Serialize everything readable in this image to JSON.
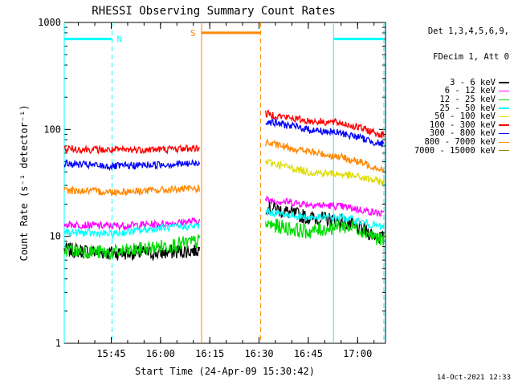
{
  "chart_data": {
    "type": "line",
    "title": "RHESSI Observing Summary Count Rates",
    "xlabel": "Start Time (24-Apr-09 15:30:42)",
    "ylabel": "Count Rate (s⁻¹ detector⁻¹)",
    "y_scale": "log",
    "ylim": [
      1,
      1000
    ],
    "xlim": [
      "15:30:42",
      "17:08:30"
    ],
    "y_ticks": [
      "1",
      "10",
      "100",
      "1000"
    ],
    "x_ticks": [
      "15:45",
      "16:00",
      "16:15",
      "16:30",
      "16:45",
      "17:00"
    ],
    "legend_header": [
      "Det 1,3,4,5,6,9,",
      "FDecim 1, Att 0"
    ],
    "gaps": [
      [
        "16:12:30",
        "16:32:00"
      ]
    ],
    "series": [
      {
        "name": "3 - 6 keV",
        "color": "#000000",
        "x": [
          "15:30:42",
          "15:45",
          "16:00",
          "16:12",
          "16:32",
          "16:45",
          "16:55",
          "17:00",
          "17:08"
        ],
        "values": [
          7.5,
          7.0,
          7.0,
          7.5,
          19,
          15,
          14,
          12,
          9.5
        ]
      },
      {
        "name": "6 - 12 keV",
        "color": "#ff00ff",
        "x": [
          "15:30:42",
          "15:45",
          "16:00",
          "16:12",
          "16:32",
          "16:45",
          "16:55",
          "17:00",
          "17:08"
        ],
        "values": [
          13,
          12.5,
          13,
          14,
          22,
          20,
          19,
          18,
          16
        ]
      },
      {
        "name": "12 - 25 keV",
        "color": "#00dd00",
        "x": [
          "15:30:42",
          "15:45",
          "16:00",
          "16:12",
          "16:32",
          "16:45",
          "16:55",
          "17:00",
          "17:08"
        ],
        "values": [
          7.5,
          7.0,
          8.0,
          9.0,
          13,
          11,
          12.5,
          12,
          9.0
        ]
      },
      {
        "name": "25 - 50 keV",
        "color": "#00ffff",
        "x": [
          "15:30:42",
          "15:45",
          "16:00",
          "16:12",
          "16:32",
          "16:45",
          "16:55",
          "17:00",
          "17:08"
        ],
        "values": [
          11,
          10.5,
          12,
          12.5,
          17,
          15,
          15,
          14,
          12
        ]
      },
      {
        "name": "50 - 100 keV",
        "color": "#dddd00",
        "x": [
          "16:32",
          "16:45",
          "16:55",
          "17:00",
          "17:08"
        ],
        "values": [
          50,
          40,
          38,
          36,
          32
        ]
      },
      {
        "name": "100 - 300 keV",
        "color": "#ff0000",
        "x": [
          "15:30:42",
          "15:45",
          "16:00",
          "16:12",
          "16:32",
          "16:45",
          "16:55",
          "17:00",
          "17:08"
        ],
        "values": [
          66,
          64,
          65,
          67,
          140,
          120,
          115,
          105,
          88
        ]
      },
      {
        "name": "300 - 800 keV",
        "color": "#0000ff",
        "x": [
          "15:30:42",
          "15:45",
          "16:00",
          "16:12",
          "16:32",
          "16:45",
          "16:55",
          "17:00",
          "17:08"
        ],
        "values": [
          48,
          45,
          47,
          48,
          120,
          100,
          92,
          85,
          72
        ]
      },
      {
        "name": "800 - 7000 keV",
        "color": "#ff8800",
        "x": [
          "15:30:42",
          "15:45",
          "16:00",
          "16:12",
          "16:32",
          "16:45",
          "16:55",
          "17:00",
          "17:08"
        ],
        "values": [
          27,
          26,
          27,
          28,
          75,
          62,
          55,
          50,
          42
        ]
      },
      {
        "name": "7000 - 15000 keV",
        "color": "#888800",
        "x": [],
        "values": []
      }
    ],
    "flags": [
      {
        "label": "N",
        "color": "#00ffff",
        "at": "15:45:15",
        "value": 700
      },
      {
        "label": "S",
        "color": "#ff8800",
        "at": "16:12:30",
        "value": 800
      },
      {
        "label": "",
        "color": "#00ffff",
        "at": "16:52:40",
        "value": 700
      }
    ],
    "intervals": [
      {
        "kind": "night",
        "color": "#00ffff",
        "start": "15:30:42",
        "end": "15:45:15"
      },
      {
        "kind": "saa",
        "color": "#ff8800",
        "start": "16:12:30",
        "end": "16:30:30"
      },
      {
        "kind": "night",
        "color": "#00ffff",
        "start": "16:52:40",
        "end": "17:08:00"
      }
    ]
  },
  "footer": {
    "timestamp": "14-Oct-2021 12:33"
  }
}
